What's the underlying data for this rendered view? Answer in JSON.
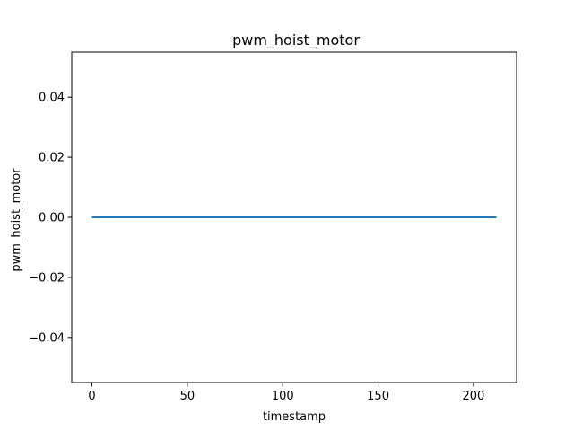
{
  "chart_data": {
    "type": "line",
    "title": "pwm_hoist_motor",
    "xlabel": "timestamp",
    "ylabel": "pwm_hoist_motor",
    "xlim": [
      -10.6,
      222.6
    ],
    "ylim": [
      -0.055,
      0.055
    ],
    "xticks": [
      0,
      50,
      100,
      150,
      200
    ],
    "xtick_labels": [
      "0",
      "50",
      "100",
      "150",
      "200"
    ],
    "yticks": [
      -0.04,
      -0.02,
      0.0,
      0.02,
      0.04
    ],
    "ytick_labels": [
      "−0.04",
      "−0.02",
      "0.00",
      "0.02",
      "0.04"
    ],
    "grid": false,
    "series": [
      {
        "color": "#1f77b4",
        "x": [
          0,
          212
        ],
        "y": [
          0.0,
          0.0
        ]
      }
    ]
  }
}
